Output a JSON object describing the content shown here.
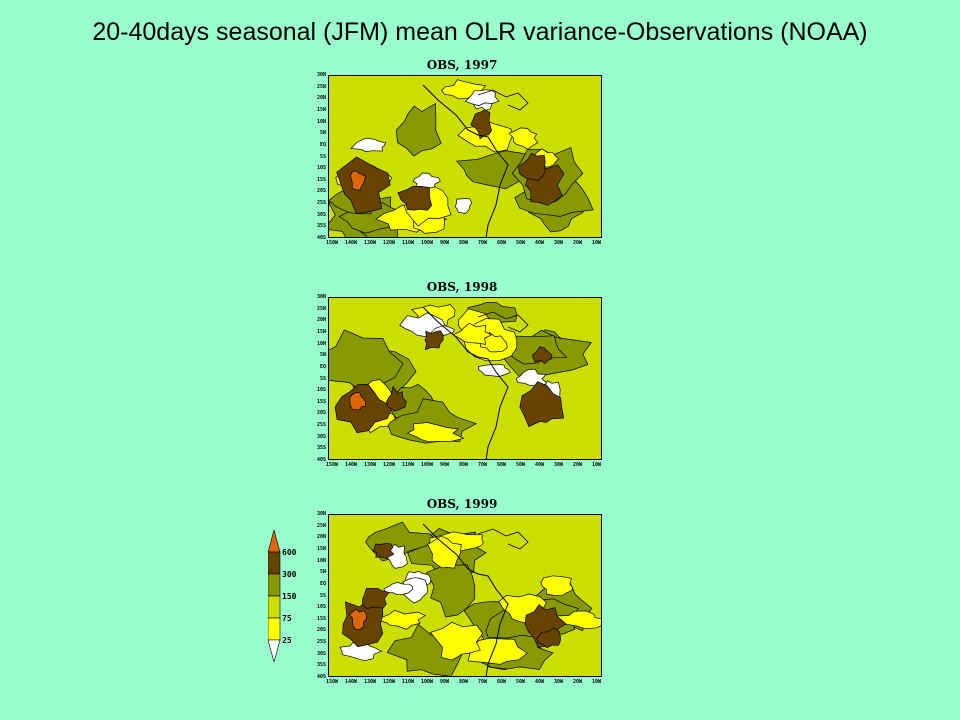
{
  "title": "20-40days seasonal (JFM) mean OLR variance-Observations (NOAA)",
  "colors": {
    "background": "#99ffcc",
    "white": "#ffffff",
    "yellow": "#ffff00",
    "light_olive": "#ccdd00",
    "olive": "#889900",
    "brown": "#664400",
    "orange": "#dd6600"
  },
  "lat_labels": [
    "30N",
    "25N",
    "20N",
    "15N",
    "10N",
    "5N",
    "EQ",
    "5S",
    "10S",
    "15S",
    "20S",
    "25S",
    "30S",
    "35S",
    "40S"
  ],
  "lon_labels": [
    "150W",
    "140W",
    "130W",
    "120W",
    "110W",
    "100W",
    "90W",
    "80W",
    "70W",
    "60W",
    "50W",
    "40W",
    "30W",
    "20W",
    "10W"
  ],
  "panels": [
    {
      "title": "OBS, 1997"
    },
    {
      "title": "OBS, 1998"
    },
    {
      "title": "OBS, 1999"
    }
  ],
  "legend": {
    "labels": [
      "600",
      "300",
      "150",
      "75",
      "25"
    ]
  }
}
